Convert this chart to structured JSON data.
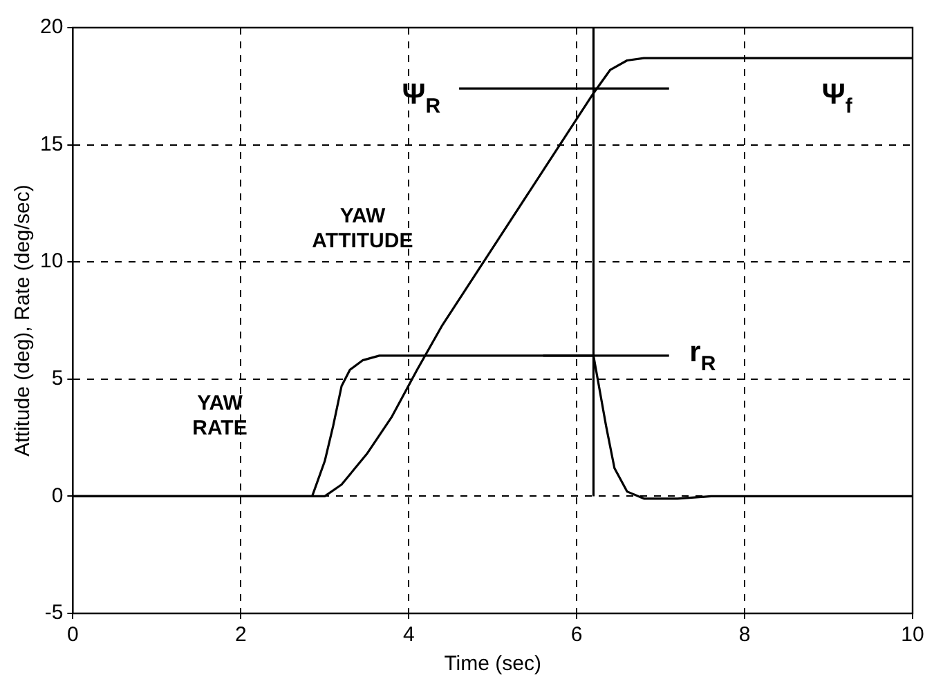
{
  "chart_data": {
    "type": "line",
    "xlabel": "Time (sec)",
    "ylabel": "Attitude (deg), Rate (deg/sec)",
    "xlim": [
      0,
      10
    ],
    "ylim": [
      -5,
      20
    ],
    "xticks": [
      0,
      2,
      4,
      6,
      8,
      10
    ],
    "yticks": [
      -5,
      0,
      5,
      10,
      15,
      20
    ],
    "grid": true,
    "marker": "none",
    "line_style": "solid",
    "series": [
      {
        "color": "#000000",
        "x": [
          0,
          2.85,
          3.0,
          3.1,
          3.2,
          3.3,
          3.45,
          3.65,
          6.2,
          6.25,
          6.35,
          6.45,
          6.6,
          6.8,
          7.2,
          7.6,
          10
        ],
        "values": [
          0,
          0,
          1.5,
          3,
          4.7,
          5.4,
          5.8,
          6,
          6,
          5,
          3,
          1.2,
          0.2,
          -0.1,
          -0.1,
          0,
          0
        ]
      },
      {
        "color": "#000000",
        "x": [
          0,
          3.0,
          3.2,
          3.5,
          3.8,
          4.1,
          4.4,
          5,
          5.6,
          6.2,
          6.4,
          6.6,
          6.8,
          10
        ],
        "values": [
          0,
          0,
          0.5,
          1.8,
          3.4,
          5.4,
          7.3,
          10.6,
          13.9,
          17.2,
          18.2,
          18.6,
          18.7,
          18.7
        ]
      },
      {
        "color": "#000000",
        "x": [
          4.6,
          7.1
        ],
        "values": [
          17.4,
          17.4
        ]
      },
      {
        "color": "#000000",
        "x": [
          5.6,
          7.1
        ],
        "values": [
          6,
          6
        ]
      },
      {
        "color": "#000000",
        "x": [
          6.2,
          6.2
        ],
        "values": [
          0,
          20
        ]
      }
    ],
    "annotations": [
      "YAW\nATTITUDE",
      "YAW\nRATE",
      "Ψ$_{R}$",
      "Ψ$_{f}$",
      "r$_{R}$"
    ]
  }
}
